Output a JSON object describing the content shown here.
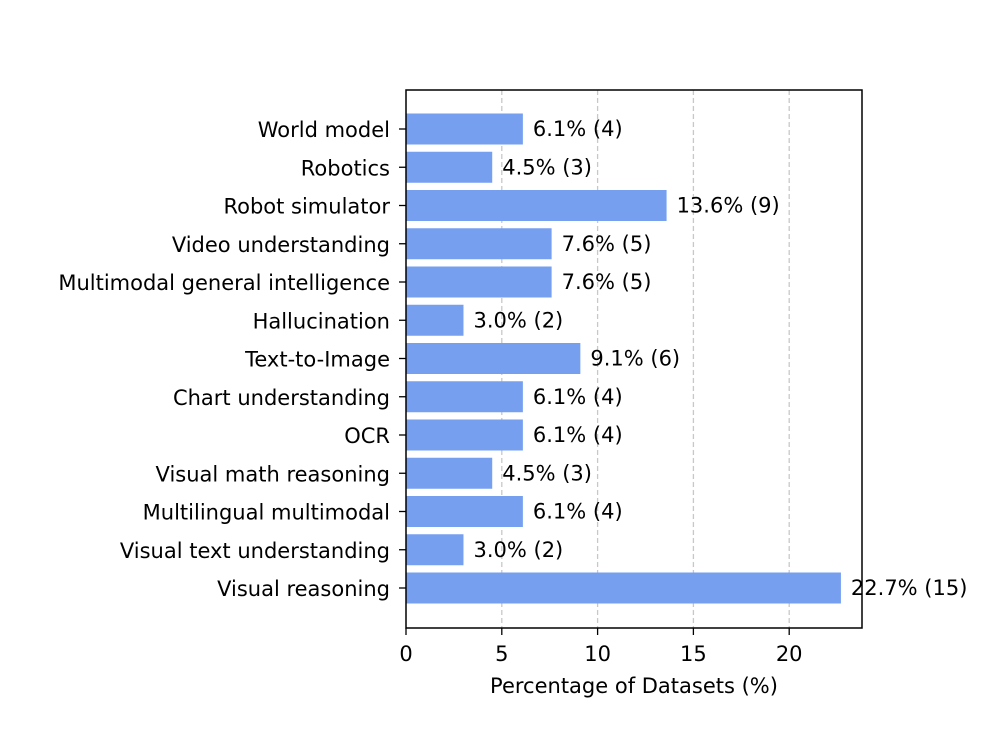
{
  "chart_data": {
    "type": "bar",
    "orientation": "horizontal",
    "title": "",
    "xlabel": "Percentage of Datasets (%)",
    "ylabel": "",
    "xlim": [
      0,
      23.8
    ],
    "xticks": [
      "0",
      "5",
      "10",
      "15",
      "20"
    ],
    "grid": "x-dashed",
    "bar_color": "#769ff0",
    "grid_color": "#c8c8c8",
    "categories": [
      "World model",
      "Robotics",
      "Robot simulator",
      "Video understanding",
      "Multimodal general intelligence",
      "Hallucination",
      "Text-to-Image",
      "Chart understanding",
      "OCR",
      "Visual math reasoning",
      "Multilingual multimodal",
      "Visual text understanding",
      "Visual reasoning"
    ],
    "values": [
      6.1,
      4.5,
      13.6,
      7.6,
      7.6,
      3.0,
      9.1,
      6.1,
      6.1,
      4.5,
      6.1,
      3.0,
      22.7
    ],
    "data_labels": [
      "6.1% (4)",
      "4.5% (3)",
      "13.6% (9)",
      "7.6% (5)",
      "7.6% (5)",
      "3.0% (2)",
      "9.1% (6)",
      "6.1% (4)",
      "6.1% (4)",
      "4.5% (3)",
      "6.1% (4)",
      "3.0% (2)",
      "22.7% (15)"
    ]
  }
}
